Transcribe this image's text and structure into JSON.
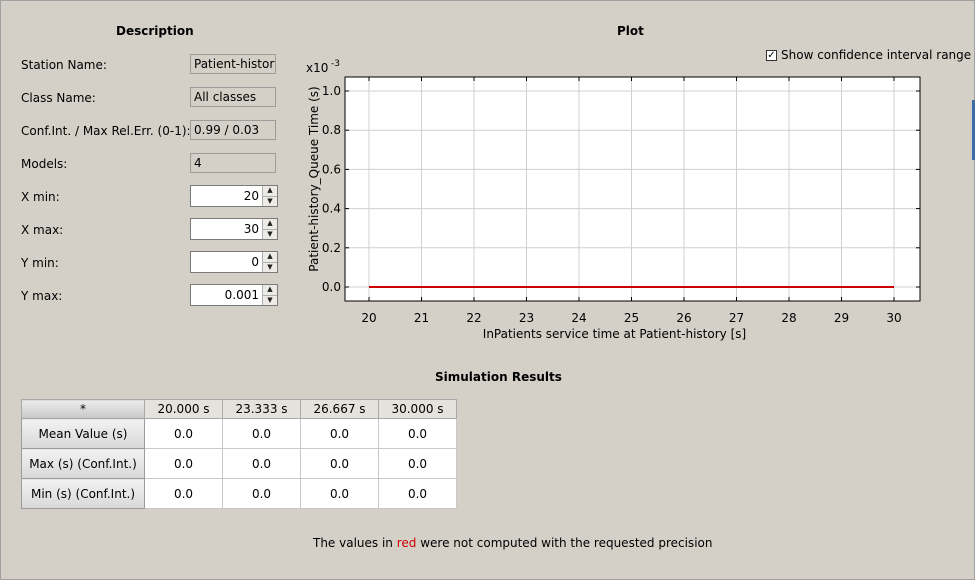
{
  "description": {
    "title": "Description",
    "fields": [
      {
        "label": "Station Name:",
        "value": "Patient-history"
      },
      {
        "label": "Class Name:",
        "value": "All classes"
      },
      {
        "label": "Conf.Int. / Max Rel.Err. (0-1):",
        "value": "0.99 / 0.03"
      },
      {
        "label": "Models:",
        "value": "4"
      }
    ],
    "spinners": [
      {
        "label": "X min:",
        "value": "20"
      },
      {
        "label": "X max:",
        "value": "30"
      },
      {
        "label": "Y min:",
        "value": "0"
      },
      {
        "label": "Y max:",
        "value": "0.001"
      }
    ]
  },
  "plot": {
    "title": "Plot",
    "show_ci_label": "Show confidence interval range",
    "show_ci_checked": true
  },
  "chart_data": {
    "type": "line",
    "x": [
      20,
      21,
      22,
      23,
      24,
      25,
      26,
      27,
      28,
      29,
      30
    ],
    "series": [
      {
        "values": [
          0,
          0,
          0,
          0,
          0,
          0,
          0,
          0,
          0,
          0,
          0
        ],
        "color": "#cc0000"
      }
    ],
    "xlabel": "InPatients  service time at Patient-history [s]",
    "ylabel": "Patient-history_Queue Time (s)",
    "y_multiplier": "x10",
    "y_multiplier_exp": "-3",
    "xlim": [
      20,
      30
    ],
    "ylim": [
      0,
      1.0
    ],
    "xticks": [
      "20",
      "21",
      "22",
      "23",
      "24",
      "25",
      "26",
      "27",
      "28",
      "29",
      "30"
    ],
    "yticks": [
      "0.0",
      "0.2",
      "0.4",
      "0.6",
      "0.8",
      "1.0"
    ],
    "grid": true
  },
  "results": {
    "title": "Simulation Results",
    "corner": "*",
    "columns": [
      "20.000 s",
      "23.333 s",
      "26.667 s",
      "30.000 s"
    ],
    "rows": [
      {
        "label": "Mean Value (s)",
        "values": [
          "0.0",
          "0.0",
          "0.0",
          "0.0"
        ]
      },
      {
        "label": "Max (s) (Conf.Int.)",
        "values": [
          "0.0",
          "0.0",
          "0.0",
          "0.0"
        ]
      },
      {
        "label": "Min (s) (Conf.Int.)",
        "values": [
          "0.0",
          "0.0",
          "0.0",
          "0.0"
        ]
      }
    ]
  },
  "note": {
    "before": "The values in ",
    "red_word": "red",
    "after": " were not computed with the requested precision"
  }
}
